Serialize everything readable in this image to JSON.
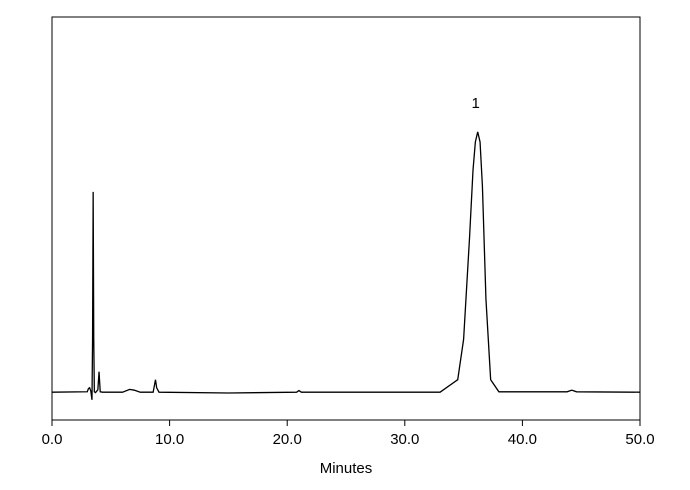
{
  "chart_data": {
    "type": "line",
    "x_label": "Minutes",
    "annotations": [
      "1"
    ],
    "xlim": [
      0,
      50
    ],
    "xticks": [
      {
        "value": 0,
        "label": "0.0"
      },
      {
        "value": 10,
        "label": "10.0"
      },
      {
        "value": 20,
        "label": "20.0"
      },
      {
        "value": 30,
        "label": "30.0"
      },
      {
        "value": 40,
        "label": "40.0"
      },
      {
        "value": 50,
        "label": "50.0"
      }
    ],
    "ylim": [
      0,
      100
    ],
    "x": [
      0,
      3.0,
      3.1,
      3.2,
      3.3,
      3.4,
      3.45,
      3.5,
      3.55,
      3.6,
      3.7,
      3.9,
      4.0,
      4.1,
      4.3,
      6.0,
      6.6,
      7.0,
      7.5,
      8.6,
      8.8,
      8.9,
      9.1,
      15,
      20.8,
      21.0,
      21.2,
      33,
      34.5,
      35.0,
      35.5,
      35.8,
      36.0,
      36.2,
      36.4,
      36.6,
      36.9,
      37.3,
      38,
      43.8,
      44.2,
      44.6,
      50
    ],
    "series": [
      {
        "color": "#000000",
        "values": [
          6.9,
          7.0,
          7.8,
          8.0,
          7.2,
          5.0,
          20,
          56.6,
          20,
          7.0,
          6.8,
          7.5,
          12.0,
          7.0,
          6.9,
          6.9,
          7.6,
          7.4,
          6.9,
          6.9,
          10.0,
          8.0,
          6.9,
          6.7,
          6.9,
          7.3,
          6.9,
          6.9,
          10,
          20,
          45,
          62,
          69,
          71.5,
          69,
          58,
          30,
          10,
          7.0,
          7.0,
          7.4,
          7.0,
          6.9
        ]
      }
    ]
  }
}
